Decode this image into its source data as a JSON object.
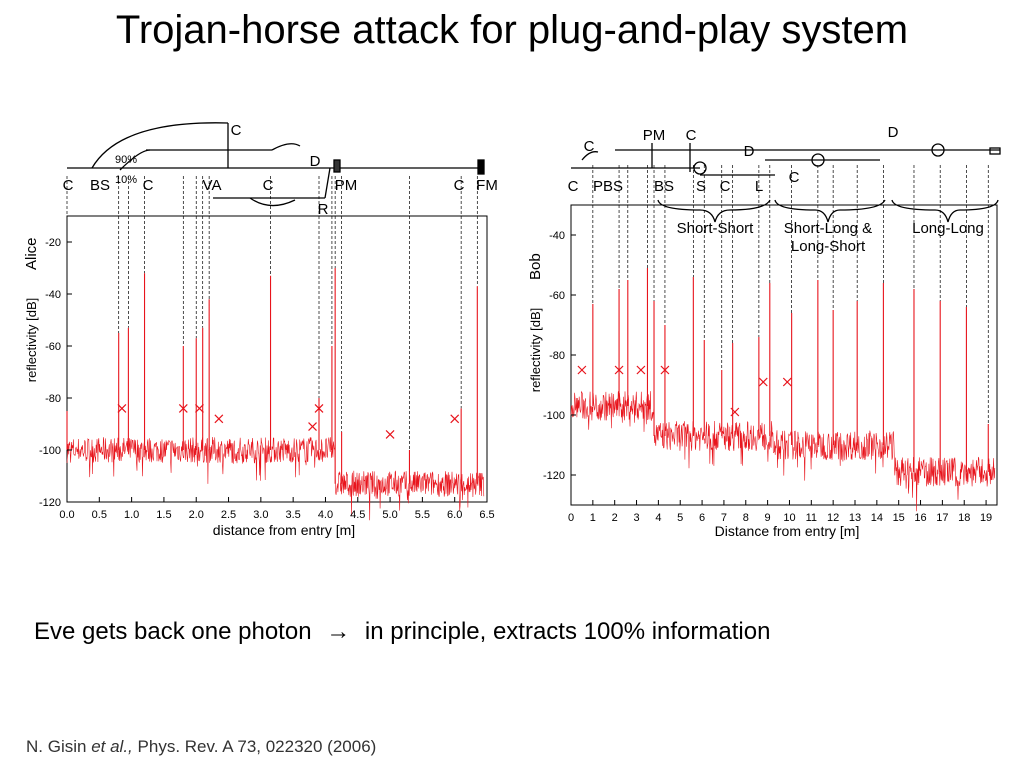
{
  "slide": {
    "title": "Trojan-horse attack for plug-and-play system",
    "bullet_before": "Eve gets back one photon",
    "arrow": "→",
    "bullet_after": "in principle, extracts 100% information",
    "citation_authors": "N. Gisin",
    "citation_etal": "et al.,",
    "citation_rest": "Phys. Rev. A 73, 022320 (2006)"
  },
  "colors": {
    "trace": "#e8141c",
    "ink": "#000000"
  },
  "chart_data": [
    {
      "type": "line",
      "side_label": "Alice",
      "xlabel": "distance from entry [m]",
      "ylabel": "reflectivity [dB]",
      "xlim": [
        0,
        6.5
      ],
      "ylim": [
        -120,
        -10
      ],
      "xticks": [
        "0.0",
        "0.5",
        "1.0",
        "1.5",
        "2.0",
        "2.5",
        "3.0",
        "3.5",
        "4.0",
        "4.5",
        "5.0",
        "5.5",
        "6.0",
        "6.5"
      ],
      "yticks": [
        "-20",
        "-40",
        "-60",
        "-80",
        "-100",
        "-120"
      ],
      "schematic_labels": [
        "C",
        "BS",
        "C",
        "VA",
        "C",
        "PM",
        "C",
        "FM",
        "C",
        "D",
        "R",
        "90%",
        "10%"
      ],
      "baseline_segments": [
        {
          "x0": 0.0,
          "x1": 4.15,
          "y": -100
        },
        {
          "x0": 4.15,
          "x1": 6.45,
          "y": -113
        }
      ],
      "peaks": [
        {
          "x": 0.0,
          "y": -85
        },
        {
          "x": 0.8,
          "y": -55
        },
        {
          "x": 0.95,
          "y": -53
        },
        {
          "x": 1.2,
          "y": -32
        },
        {
          "x": 1.8,
          "y": -60
        },
        {
          "x": 2.0,
          "y": -57
        },
        {
          "x": 2.1,
          "y": -53
        },
        {
          "x": 2.2,
          "y": -42
        },
        {
          "x": 3.15,
          "y": -33
        },
        {
          "x": 3.9,
          "y": -80
        },
        {
          "x": 4.1,
          "y": -60
        },
        {
          "x": 4.15,
          "y": -30
        },
        {
          "x": 4.25,
          "y": -93
        },
        {
          "x": 5.3,
          "y": -100
        },
        {
          "x": 6.1,
          "y": -84
        },
        {
          "x": 6.35,
          "y": -37
        }
      ],
      "markers": [
        {
          "x": 0.85,
          "y": -84
        },
        {
          "x": 1.8,
          "y": -84
        },
        {
          "x": 2.05,
          "y": -84
        },
        {
          "x": 2.35,
          "y": -88
        },
        {
          "x": 3.8,
          "y": -91
        },
        {
          "x": 3.9,
          "y": -84
        },
        {
          "x": 5.0,
          "y": -94
        },
        {
          "x": 6.0,
          "y": -88
        }
      ]
    },
    {
      "type": "line",
      "side_label": "Bob",
      "xlabel": "Distance from entry [m]",
      "ylabel": "reflectivity [dB]",
      "xlim": [
        0,
        19.5
      ],
      "ylim": [
        -130,
        -30
      ],
      "xticks": [
        "0",
        "1",
        "2",
        "3",
        "4",
        "5",
        "6",
        "7",
        "8",
        "9",
        "10",
        "11",
        "12",
        "13",
        "14",
        "15",
        "16",
        "17",
        "18",
        "19"
      ],
      "yticks": [
        "-40",
        "-60",
        "-80",
        "-100",
        "-120"
      ],
      "schematic_labels": [
        "C",
        "PM",
        "C",
        "D",
        "D",
        "C",
        "PBS",
        "BS",
        "S",
        "C",
        "L",
        "C"
      ],
      "regions": [
        "Short-Short",
        "Short-Long &",
        "Long-Short",
        "Long-Long"
      ],
      "baseline_segments": [
        {
          "x0": 0.0,
          "x1": 3.8,
          "y": -97
        },
        {
          "x0": 3.8,
          "x1": 9.2,
          "y": -107
        },
        {
          "x0": 9.2,
          "x1": 14.8,
          "y": -110
        },
        {
          "x0": 14.8,
          "x1": 19.4,
          "y": -119
        }
      ],
      "peaks": [
        {
          "x": 1.0,
          "y": -63
        },
        {
          "x": 2.2,
          "y": -58
        },
        {
          "x": 2.6,
          "y": -55
        },
        {
          "x": 3.5,
          "y": -51
        },
        {
          "x": 3.8,
          "y": -62
        },
        {
          "x": 4.3,
          "y": -70
        },
        {
          "x": 5.6,
          "y": -54
        },
        {
          "x": 6.1,
          "y": -75
        },
        {
          "x": 6.9,
          "y": -85
        },
        {
          "x": 7.4,
          "y": -76
        },
        {
          "x": 8.6,
          "y": -74
        },
        {
          "x": 9.1,
          "y": -56
        },
        {
          "x": 10.1,
          "y": -66
        },
        {
          "x": 11.3,
          "y": -55
        },
        {
          "x": 12.0,
          "y": -65
        },
        {
          "x": 13.1,
          "y": -62
        },
        {
          "x": 14.3,
          "y": -56
        },
        {
          "x": 15.7,
          "y": -58
        },
        {
          "x": 16.9,
          "y": -62
        },
        {
          "x": 18.1,
          "y": -64
        },
        {
          "x": 19.1,
          "y": -103
        }
      ],
      "markers": [
        {
          "x": 0.5,
          "y": -85
        },
        {
          "x": 2.2,
          "y": -85
        },
        {
          "x": 3.2,
          "y": -85
        },
        {
          "x": 4.3,
          "y": -85
        },
        {
          "x": 7.5,
          "y": -99
        },
        {
          "x": 8.8,
          "y": -89
        },
        {
          "x": 9.9,
          "y": -89
        }
      ]
    }
  ]
}
